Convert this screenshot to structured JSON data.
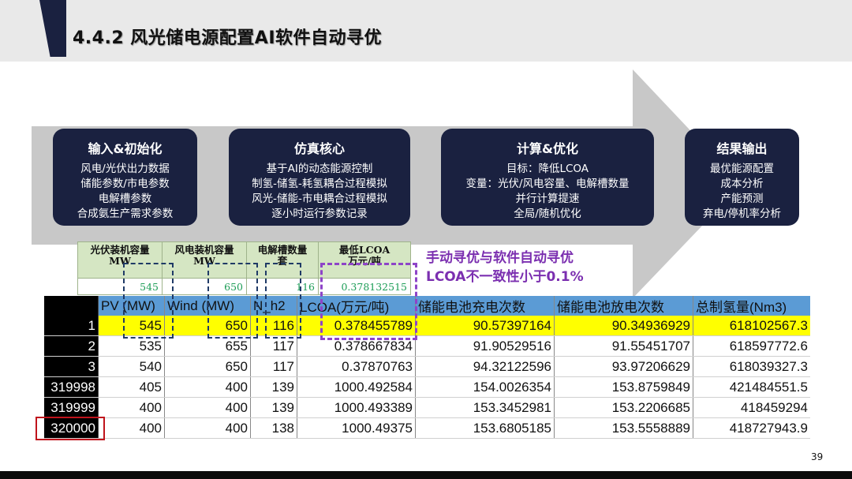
{
  "title": "4.4.2 风光储电源配置AI软件自动寻优",
  "stages": [
    {
      "head": "输入&初始化",
      "lines": [
        "风电/光伏出力数据",
        "储能参数/市电参数",
        "电解槽参数",
        "合成氨生产需求参数"
      ]
    },
    {
      "head": "仿真核心",
      "lines": [
        "基于AI的动态能源控制",
        "制氢-储氢-耗氢耦合过程模拟",
        "风光-储能-市电耦合过程模拟",
        "逐小时运行参数记录"
      ]
    },
    {
      "head": "计算&优化",
      "lines": [
        "目标：降低LCOA",
        "变量：光伏/风电容量、电解槽数量",
        "并行计算提速",
        "全局/随机优化"
      ]
    },
    {
      "head": "结果输出",
      "lines": [
        "最优能源配置",
        "成本分析",
        "产能预测",
        "弃电/停机率分析"
      ]
    }
  ],
  "manual_table": {
    "headers": [
      {
        "l1": "光伏装机容量",
        "l2": "MW"
      },
      {
        "l1": "风电装机容量",
        "l2": "MW"
      },
      {
        "l1": "电解槽数量",
        "l2": "套"
      },
      {
        "l1": "最低LCOA",
        "l2": "万元/吨"
      }
    ],
    "values": [
      "545",
      "650",
      "116",
      "0.378132515"
    ]
  },
  "note": {
    "line1": "手动寻优与软件自动寻优",
    "line2": "LCOA不一致性小于0.1%"
  },
  "result_table": {
    "headers": [
      "",
      "PV (MW)",
      "Wind (MW)",
      "N_h2",
      "LCOA(万元/吨)",
      "储能电池充电次数",
      "储能电池放电次数",
      "总制氢量(Nm3)"
    ],
    "rows": [
      [
        "1",
        "545",
        "650",
        "116",
        "0.378455789",
        "90.57397164",
        "90.34936929",
        "618102567.3"
      ],
      [
        "2",
        "535",
        "655",
        "117",
        "0.378667834",
        "91.90529516",
        "91.55451707",
        "618597772.6"
      ],
      [
        "3",
        "540",
        "650",
        "117",
        "0.37870763",
        "94.32122596",
        "93.97206629",
        "618039327.3"
      ],
      [
        "319998",
        "405",
        "400",
        "139",
        "1000.492584",
        "154.0026354",
        "153.8759849",
        "421484551.5"
      ],
      [
        "319999",
        "400",
        "400",
        "139",
        "1000.493389",
        "153.3452981",
        "153.2206685",
        "418459294"
      ],
      [
        "320000",
        "400",
        "400",
        "138",
        "1000.49375",
        "153.6805185",
        "153.5558889",
        "418727943.9"
      ]
    ]
  },
  "page_number": "39",
  "colors": {
    "navy": "#1a2140",
    "arrow_gray": "#c8c8c8",
    "header_blue": "#5b9bd5",
    "highlight_yellow": "#ffff00",
    "purple": "#8e44c8",
    "green_header": "#d5e6c3",
    "red": "#c0141c"
  }
}
